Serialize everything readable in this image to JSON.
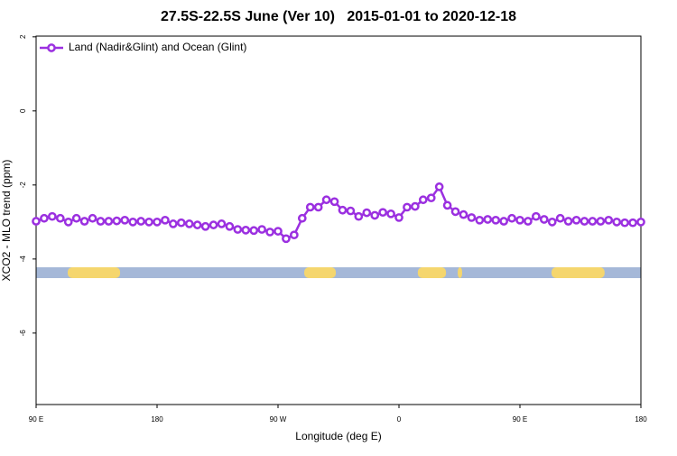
{
  "chart_data": {
    "type": "line",
    "title": "27.5S-22.5S June (Ver 10)   2015-01-01 to 2020-12-18",
    "xlabel": "Longitude (deg E)",
    "ylabel": "XCO2 - MLO trend (ppm)",
    "xlim": [
      90,
      540
    ],
    "ylim": [
      -7.93,
      2.02
    ],
    "xticks": [
      {
        "value": 90,
        "label": "90 E"
      },
      {
        "value": 180,
        "label": "180"
      },
      {
        "value": 270,
        "label": "90 W"
      },
      {
        "value": 360,
        "label": "0"
      },
      {
        "value": 450,
        "label": "90 E"
      },
      {
        "value": 540,
        "label": "180"
      }
    ],
    "yticks": [
      2,
      0,
      -2,
      -4,
      -6
    ],
    "x": [
      90,
      96,
      102,
      108,
      114,
      120,
      126,
      132,
      138,
      144,
      150,
      156,
      162,
      168,
      174,
      180,
      186,
      192,
      198,
      204,
      210,
      216,
      222,
      228,
      234,
      240,
      246,
      252,
      258,
      264,
      270,
      276,
      282,
      288,
      294,
      300,
      306,
      312,
      318,
      324,
      330,
      336,
      342,
      348,
      354,
      360,
      366,
      372,
      378,
      384,
      390,
      396,
      402,
      408,
      414,
      420,
      426,
      432,
      438,
      444,
      450,
      456,
      462,
      468,
      474,
      480,
      486,
      492,
      498,
      504,
      510,
      516,
      522,
      528,
      534,
      540
    ],
    "series": [
      {
        "name": "Land (Nadir&Glint) and Ocean (Glint)",
        "color": "#9b30e0",
        "values": [
          -2.98,
          -2.9,
          -2.85,
          -2.9,
          -3.0,
          -2.9,
          -2.98,
          -2.9,
          -2.98,
          -2.98,
          -2.97,
          -2.95,
          -3.0,
          -2.98,
          -3.0,
          -3.0,
          -2.95,
          -3.05,
          -3.02,
          -3.05,
          -3.08,
          -3.12,
          -3.08,
          -3.05,
          -3.12,
          -3.2,
          -3.22,
          -3.23,
          -3.2,
          -3.27,
          -3.25,
          -3.45,
          -3.35,
          -2.9,
          -2.6,
          -2.6,
          -2.4,
          -2.45,
          -2.68,
          -2.7,
          -2.85,
          -2.75,
          -2.82,
          -2.74,
          -2.78,
          -2.88,
          -2.6,
          -2.58,
          -2.4,
          -2.35,
          -2.05,
          -2.55,
          -2.72,
          -2.8,
          -2.88,
          -2.95,
          -2.93,
          -2.95,
          -2.98,
          -2.9,
          -2.95,
          -2.98,
          -2.85,
          -2.93,
          -3.0,
          -2.9,
          -2.98,
          -2.95,
          -2.98,
          -2.98,
          -2.98,
          -2.95,
          -3.0,
          -3.02,
          -3.02,
          -3.0
        ]
      }
    ],
    "legend": "top-left",
    "surface_strip": {
      "ocean_color": "#a5b8d8",
      "land_color": "#f5d66e",
      "land": [
        [
          113.5,
          152.5
        ],
        [
          289.5,
          313
        ],
        [
          374,
          395
        ],
        [
          403.7,
          407
        ],
        [
          473.5,
          513
        ]
      ]
    }
  }
}
